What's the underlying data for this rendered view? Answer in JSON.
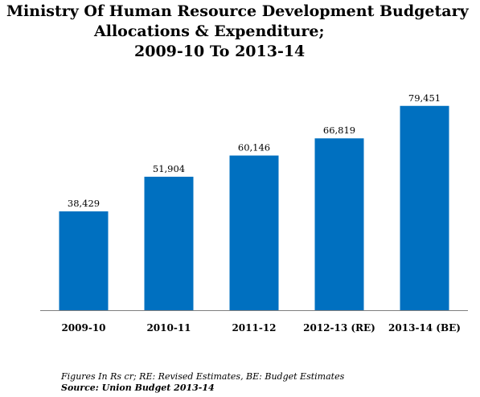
{
  "title_lines": [
    "Ministry Of Human Resource Development Budgetary",
    "Allocations & Expenditure;",
    "2009-10 To 2013-14"
  ],
  "footnote": "Figures In Rs cr; RE: Revised Estimates, BE: Budget Estimates",
  "source": "Source: Union Budget 2013-14",
  "colors": {
    "bar": "#0070c0",
    "axis": "#7f7f7f"
  },
  "chart_data": {
    "type": "bar",
    "title": "Ministry Of Human Resource Development Budgetary Allocations & Expenditure; 2009-10 To 2013-14",
    "categories": [
      "2009-10",
      "2010-11",
      "2011-12",
      "2012-13 (RE)",
      "2013-14 (BE)"
    ],
    "values": [
      38429,
      51904,
      60146,
      66819,
      79451
    ],
    "value_labels": [
      "38,429",
      "51,904",
      "60,146",
      "66,819",
      "79,451"
    ],
    "xlabel": "",
    "ylabel": "",
    "ylim": [
      0,
      90000
    ],
    "grid": false,
    "legend": "none"
  }
}
